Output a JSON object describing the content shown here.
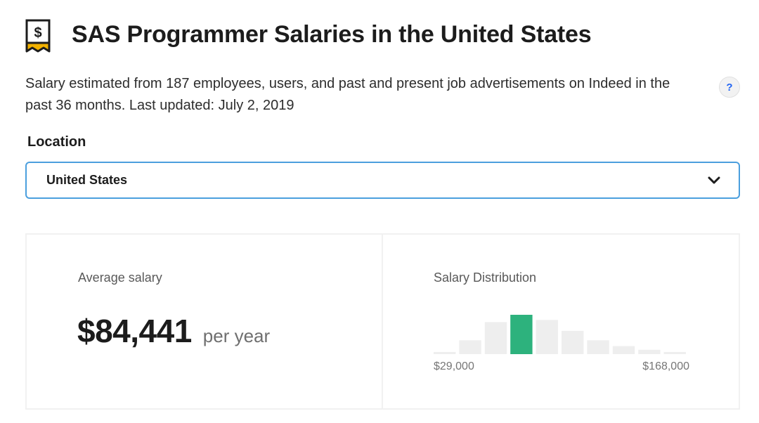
{
  "header": {
    "title": "SAS Programmer Salaries in the United States",
    "icon": "receipt-dollar-icon",
    "icon_color": "#f1b100"
  },
  "description": "Salary estimated from 187 employees, users, and past and present job advertisements on Indeed in the past 36 months. Last updated: July 2, 2019",
  "help": {
    "label": "?"
  },
  "location": {
    "label": "Location",
    "selected": "United States",
    "border_color": "#4b9fde"
  },
  "average": {
    "label": "Average salary",
    "value": "$84,441",
    "unit": "per year"
  },
  "distribution": {
    "label": "Salary Distribution",
    "min_label": "$29,000",
    "max_label": "$168,000",
    "highlight_color": "#2db27d",
    "bar_color": "#eeeeee"
  },
  "chart_data": {
    "type": "bar",
    "title": "Salary Distribution",
    "values": [
      3,
      19,
      44,
      54,
      47,
      32,
      19,
      11,
      6,
      3
    ],
    "highlight_index": 3,
    "x_range_labels": [
      "$29,000",
      "$168,000"
    ],
    "grid": false
  }
}
